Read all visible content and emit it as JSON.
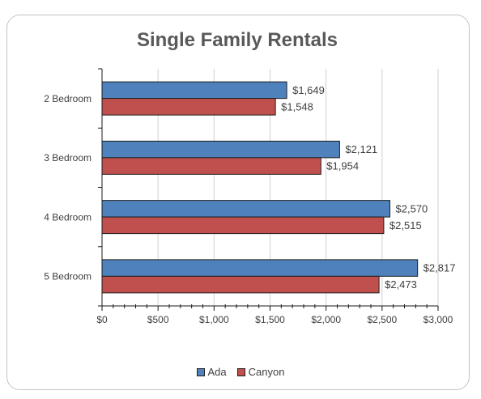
{
  "chart_data": {
    "type": "bar",
    "orientation": "horizontal",
    "title": "Single Family Rentals",
    "categories": [
      "2 Bedroom",
      "3 Bedroom",
      "4 Bedroom",
      "5 Bedroom"
    ],
    "series": [
      {
        "name": "Ada",
        "color": "#4F81BD",
        "values": [
          1649,
          2121,
          2570,
          2817
        ],
        "data_labels": [
          "$1,649",
          "$2,121",
          "$2,570",
          "$2,817"
        ]
      },
      {
        "name": "Canyon",
        "color": "#C0504D",
        "values": [
          1548,
          1954,
          2515,
          2473
        ],
        "data_labels": [
          "$1,548",
          "$1,954",
          "$2,515",
          "$2,473"
        ]
      }
    ],
    "xlim": [
      0,
      3000
    ],
    "x_ticks": [
      0,
      500,
      1000,
      1500,
      2000,
      2500,
      3000
    ],
    "x_tick_labels": [
      "$0",
      "$500",
      "$1,000",
      "$1,500",
      "$2,000",
      "$2,500",
      "$3,000"
    ],
    "x_minor_tick_interval": 100,
    "grid": "vertical",
    "legend": "bottom"
  }
}
